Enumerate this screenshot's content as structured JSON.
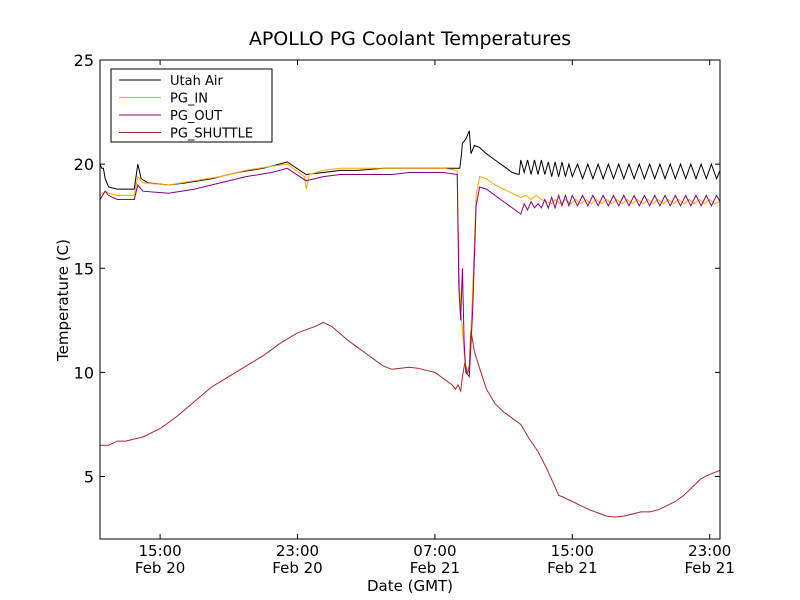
{
  "chart_data": {
    "type": "line",
    "title": "APOLLO PG Coolant Temperatures",
    "xlabel": "Date (GMT)",
    "ylabel": "Temperature (C)",
    "xunit": "hours since Feb 20 00:00 GMT",
    "xlim": [
      11.5,
      47.6
    ],
    "ylim": [
      2,
      25
    ],
    "yticks": [
      5,
      10,
      15,
      20,
      25
    ],
    "xticks": [
      {
        "x": 15,
        "time": "15:00",
        "date": "Feb 20"
      },
      {
        "x": 23,
        "time": "23:00",
        "date": "Feb 20"
      },
      {
        "x": 31,
        "time": "07:00",
        "date": "Feb 21"
      },
      {
        "x": 39,
        "time": "15:00",
        "date": "Feb 21"
      },
      {
        "x": 47,
        "time": "23:00",
        "date": "Feb 21"
      }
    ],
    "legend_position": "top-left",
    "series": [
      {
        "name": "Utah Air",
        "color": "#000000",
        "points": [
          [
            11.5,
            20.0
          ],
          [
            11.6,
            19.8
          ],
          [
            11.7,
            19.8
          ],
          [
            11.8,
            19.3
          ],
          [
            12.0,
            18.9
          ],
          [
            12.5,
            18.8
          ],
          [
            13.5,
            18.8
          ],
          [
            13.7,
            20.0
          ],
          [
            13.9,
            19.3
          ],
          [
            14.3,
            19.1
          ],
          [
            15.5,
            19.0
          ],
          [
            16.5,
            19.1
          ],
          [
            18.0,
            19.3
          ],
          [
            19.5,
            19.6
          ],
          [
            21.0,
            19.8
          ],
          [
            22.4,
            20.1
          ],
          [
            23.5,
            19.5
          ],
          [
            24.5,
            19.6
          ],
          [
            25.5,
            19.7
          ],
          [
            26.5,
            19.7
          ],
          [
            28.0,
            19.8
          ],
          [
            29.5,
            19.8
          ],
          [
            30.5,
            19.8
          ],
          [
            31.5,
            19.8
          ],
          [
            32.3,
            19.8
          ],
          [
            32.45,
            19.8
          ],
          [
            32.55,
            20.5
          ],
          [
            32.6,
            21.0
          ],
          [
            32.8,
            21.2
          ],
          [
            33.0,
            21.6
          ],
          [
            33.1,
            20.5
          ],
          [
            33.3,
            20.9
          ],
          [
            33.6,
            20.8
          ],
          [
            34.0,
            20.5
          ],
          [
            34.5,
            20.2
          ],
          [
            35.0,
            19.9
          ],
          [
            35.5,
            19.6
          ],
          [
            35.9,
            19.5
          ],
          [
            36.0,
            20.2
          ],
          [
            36.2,
            19.6
          ],
          [
            36.4,
            20.2
          ],
          [
            36.6,
            19.5
          ],
          [
            36.8,
            20.2
          ],
          [
            37.0,
            19.5
          ],
          [
            37.2,
            20.2
          ],
          [
            37.4,
            19.5
          ],
          [
            37.6,
            20.1
          ],
          [
            37.8,
            19.4
          ],
          [
            38.0,
            20.1
          ],
          [
            38.2,
            19.4
          ],
          [
            38.4,
            20.1
          ],
          [
            38.6,
            19.4
          ],
          [
            38.8,
            20.0
          ],
          [
            39.0,
            19.4
          ],
          [
            39.3,
            20.0
          ],
          [
            39.6,
            19.3
          ],
          [
            39.9,
            20.0
          ],
          [
            40.2,
            19.3
          ],
          [
            40.5,
            20.0
          ],
          [
            40.8,
            19.3
          ],
          [
            41.1,
            20.0
          ],
          [
            41.4,
            19.3
          ],
          [
            41.7,
            20.0
          ],
          [
            42.0,
            19.3
          ],
          [
            42.3,
            20.0
          ],
          [
            42.6,
            19.3
          ],
          [
            42.9,
            20.0
          ],
          [
            43.2,
            19.3
          ],
          [
            43.5,
            20.0
          ],
          [
            43.8,
            19.3
          ],
          [
            44.1,
            20.0
          ],
          [
            44.4,
            19.3
          ],
          [
            44.7,
            20.0
          ],
          [
            45.0,
            19.3
          ],
          [
            45.3,
            20.0
          ],
          [
            45.6,
            19.3
          ],
          [
            45.9,
            20.0
          ],
          [
            46.2,
            19.3
          ],
          [
            46.5,
            20.0
          ],
          [
            46.8,
            19.3
          ],
          [
            47.1,
            20.0
          ],
          [
            47.4,
            19.3
          ],
          [
            47.6,
            19.7
          ]
        ]
      },
      {
        "name": "PG_IN",
        "color": "#ffa500",
        "points": [
          [
            11.5,
            18.5
          ],
          [
            11.8,
            18.7
          ],
          [
            12.0,
            18.6
          ],
          [
            12.5,
            18.5
          ],
          [
            13.5,
            18.5
          ],
          [
            13.7,
            19.4
          ],
          [
            14.0,
            19.1
          ],
          [
            15.5,
            19.0
          ],
          [
            17.0,
            19.2
          ],
          [
            18.5,
            19.4
          ],
          [
            20.0,
            19.7
          ],
          [
            21.5,
            19.9
          ],
          [
            22.4,
            20.0
          ],
          [
            23.4,
            19.4
          ],
          [
            23.5,
            18.8
          ],
          [
            23.7,
            19.5
          ],
          [
            24.5,
            19.7
          ],
          [
            25.5,
            19.8
          ],
          [
            26.5,
            19.8
          ],
          [
            28.0,
            19.8
          ],
          [
            29.5,
            19.8
          ],
          [
            30.5,
            19.8
          ],
          [
            31.5,
            19.8
          ],
          [
            32.3,
            19.7
          ],
          [
            32.4,
            15.0
          ],
          [
            32.5,
            13.0
          ],
          [
            32.6,
            12.0
          ],
          [
            32.8,
            10.0
          ],
          [
            33.0,
            10.3
          ],
          [
            33.2,
            14.0
          ],
          [
            33.4,
            18.5
          ],
          [
            33.6,
            19.4
          ],
          [
            34.0,
            19.3
          ],
          [
            34.5,
            19.0
          ],
          [
            35.0,
            18.8
          ],
          [
            35.5,
            18.6
          ],
          [
            36.0,
            18.4
          ],
          [
            36.3,
            18.5
          ],
          [
            36.6,
            18.3
          ],
          [
            36.9,
            18.5
          ],
          [
            37.2,
            18.3
          ],
          [
            37.5,
            18.2
          ],
          [
            37.8,
            18.1
          ],
          [
            38.0,
            18.3
          ],
          [
            38.3,
            18.1
          ],
          [
            38.6,
            18.3
          ],
          [
            38.9,
            18.1
          ],
          [
            39.2,
            18.3
          ],
          [
            39.5,
            18.1
          ],
          [
            39.8,
            18.3
          ],
          [
            40.1,
            18.1
          ],
          [
            40.4,
            18.3
          ],
          [
            40.7,
            18.1
          ],
          [
            41.0,
            18.3
          ],
          [
            41.3,
            18.1
          ],
          [
            41.6,
            18.3
          ],
          [
            41.9,
            18.1
          ],
          [
            42.2,
            18.3
          ],
          [
            42.5,
            18.1
          ],
          [
            42.8,
            18.3
          ],
          [
            43.1,
            18.1
          ],
          [
            43.4,
            18.3
          ],
          [
            43.7,
            18.1
          ],
          [
            44.0,
            18.3
          ],
          [
            44.3,
            18.1
          ],
          [
            44.6,
            18.3
          ],
          [
            44.9,
            18.1
          ],
          [
            45.2,
            18.3
          ],
          [
            45.5,
            18.1
          ],
          [
            45.8,
            18.3
          ],
          [
            46.1,
            18.1
          ],
          [
            46.4,
            18.3
          ],
          [
            46.7,
            18.1
          ],
          [
            47.0,
            18.3
          ],
          [
            47.3,
            18.1
          ],
          [
            47.6,
            18.2
          ]
        ]
      },
      {
        "name": "PG_OUT",
        "color": "#800080",
        "points": [
          [
            11.5,
            18.3
          ],
          [
            11.8,
            18.7
          ],
          [
            12.0,
            18.5
          ],
          [
            12.5,
            18.3
          ],
          [
            13.5,
            18.3
          ],
          [
            13.7,
            19.0
          ],
          [
            14.0,
            18.7
          ],
          [
            15.5,
            18.6
          ],
          [
            17.0,
            18.8
          ],
          [
            18.5,
            19.1
          ],
          [
            20.0,
            19.4
          ],
          [
            21.5,
            19.6
          ],
          [
            22.4,
            19.8
          ],
          [
            23.5,
            19.2
          ],
          [
            24.5,
            19.4
          ],
          [
            25.5,
            19.5
          ],
          [
            26.5,
            19.5
          ],
          [
            27.5,
            19.5
          ],
          [
            28.5,
            19.5
          ],
          [
            29.5,
            19.6
          ],
          [
            30.5,
            19.6
          ],
          [
            31.5,
            19.6
          ],
          [
            32.3,
            19.5
          ],
          [
            32.4,
            14.0
          ],
          [
            32.5,
            12.5
          ],
          [
            32.6,
            15.0
          ],
          [
            32.7,
            11.5
          ],
          [
            32.8,
            10.0
          ],
          [
            33.0,
            9.8
          ],
          [
            33.2,
            13.0
          ],
          [
            33.4,
            18.0
          ],
          [
            33.6,
            18.9
          ],
          [
            34.0,
            18.8
          ],
          [
            34.5,
            18.5
          ],
          [
            35.0,
            18.2
          ],
          [
            35.5,
            17.9
          ],
          [
            36.0,
            17.6
          ],
          [
            36.2,
            18.1
          ],
          [
            36.4,
            17.8
          ],
          [
            36.6,
            18.2
          ],
          [
            36.8,
            17.9
          ],
          [
            37.0,
            18.1
          ],
          [
            37.2,
            17.9
          ],
          [
            37.4,
            18.3
          ],
          [
            37.6,
            17.9
          ],
          [
            37.8,
            18.4
          ],
          [
            38.0,
            17.9
          ],
          [
            38.2,
            18.5
          ],
          [
            38.4,
            18.0
          ],
          [
            38.6,
            18.5
          ],
          [
            38.8,
            18.0
          ],
          [
            39.0,
            18.5
          ],
          [
            39.3,
            18.0
          ],
          [
            39.6,
            18.5
          ],
          [
            39.9,
            18.0
          ],
          [
            40.2,
            18.5
          ],
          [
            40.5,
            18.0
          ],
          [
            40.8,
            18.5
          ],
          [
            41.1,
            18.0
          ],
          [
            41.4,
            18.5
          ],
          [
            41.7,
            18.0
          ],
          [
            42.0,
            18.5
          ],
          [
            42.3,
            18.0
          ],
          [
            42.6,
            18.5
          ],
          [
            42.9,
            18.0
          ],
          [
            43.2,
            18.5
          ],
          [
            43.5,
            18.0
          ],
          [
            43.8,
            18.5
          ],
          [
            44.1,
            18.0
          ],
          [
            44.4,
            18.5
          ],
          [
            44.7,
            18.0
          ],
          [
            45.0,
            18.5
          ],
          [
            45.3,
            18.0
          ],
          [
            45.6,
            18.5
          ],
          [
            45.9,
            18.0
          ],
          [
            46.2,
            18.5
          ],
          [
            46.5,
            18.0
          ],
          [
            46.8,
            18.5
          ],
          [
            47.1,
            18.0
          ],
          [
            47.4,
            18.5
          ],
          [
            47.6,
            18.2
          ]
        ]
      },
      {
        "name": "PG_SHUTTLE",
        "color": "#a52a2a",
        "points": [
          [
            11.5,
            6.5
          ],
          [
            12.0,
            6.5
          ],
          [
            12.5,
            6.7
          ],
          [
            13.0,
            6.7
          ],
          [
            13.5,
            6.8
          ],
          [
            14.0,
            6.9
          ],
          [
            15.0,
            7.3
          ],
          [
            16.0,
            7.9
          ],
          [
            17.0,
            8.6
          ],
          [
            18.0,
            9.3
          ],
          [
            19.0,
            9.8
          ],
          [
            20.0,
            10.3
          ],
          [
            21.0,
            10.8
          ],
          [
            22.0,
            11.4
          ],
          [
            23.0,
            11.9
          ],
          [
            24.0,
            12.2
          ],
          [
            24.5,
            12.4
          ],
          [
            25.0,
            12.2
          ],
          [
            26.0,
            11.5
          ],
          [
            27.0,
            10.9
          ],
          [
            28.0,
            10.3
          ],
          [
            28.5,
            10.15
          ],
          [
            29.0,
            10.2
          ],
          [
            29.5,
            10.25
          ],
          [
            30.0,
            10.2
          ],
          [
            30.5,
            10.1
          ],
          [
            31.0,
            10.0
          ],
          [
            31.5,
            9.7
          ],
          [
            32.0,
            9.4
          ],
          [
            32.2,
            9.2
          ],
          [
            32.35,
            9.4
          ],
          [
            32.5,
            9.1
          ],
          [
            32.6,
            9.8
          ],
          [
            32.75,
            10.5
          ],
          [
            32.9,
            9.9
          ],
          [
            33.0,
            10.3
          ],
          [
            33.1,
            12.0
          ],
          [
            33.3,
            11.0
          ],
          [
            33.6,
            10.2
          ],
          [
            34.0,
            9.2
          ],
          [
            34.5,
            8.5
          ],
          [
            35.0,
            8.1
          ],
          [
            35.5,
            7.8
          ],
          [
            36.0,
            7.5
          ],
          [
            36.5,
            6.8
          ],
          [
            37.0,
            6.2
          ],
          [
            37.5,
            5.4
          ],
          [
            38.0,
            4.5
          ],
          [
            38.2,
            4.1
          ],
          [
            38.5,
            4.0
          ],
          [
            39.0,
            3.8
          ],
          [
            39.5,
            3.6
          ],
          [
            40.0,
            3.4
          ],
          [
            40.5,
            3.25
          ],
          [
            41.0,
            3.1
          ],
          [
            41.5,
            3.05
          ],
          [
            42.0,
            3.1
          ],
          [
            42.5,
            3.2
          ],
          [
            43.0,
            3.3
          ],
          [
            43.5,
            3.3
          ],
          [
            44.0,
            3.4
          ],
          [
            44.5,
            3.6
          ],
          [
            45.0,
            3.8
          ],
          [
            45.5,
            4.1
          ],
          [
            46.0,
            4.5
          ],
          [
            46.5,
            4.9
          ],
          [
            47.0,
            5.1
          ],
          [
            47.6,
            5.3
          ]
        ]
      }
    ]
  }
}
